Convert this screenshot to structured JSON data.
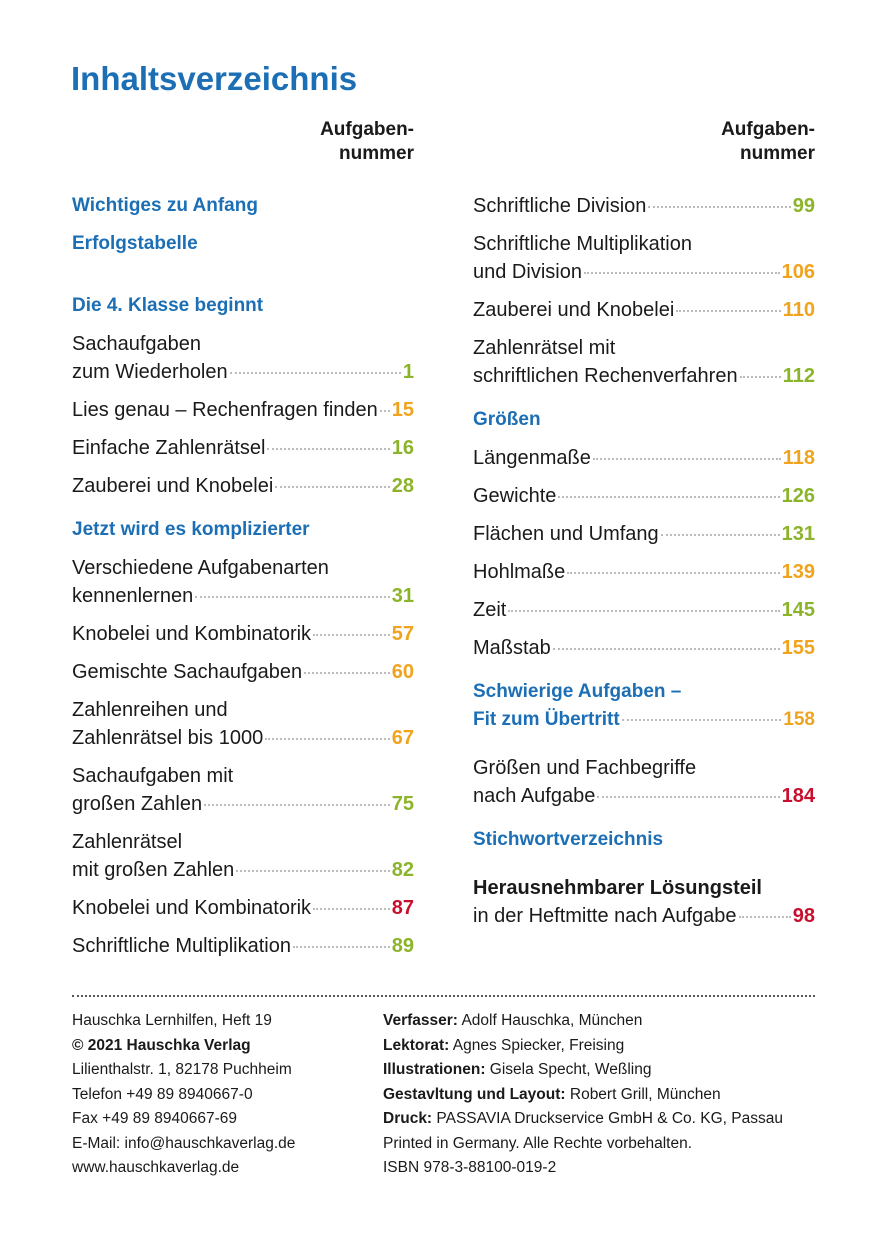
{
  "title": "Inhaltsverzeichnis",
  "columns": [
    {
      "header": [
        "Aufgaben-",
        "nummer"
      ],
      "items": [
        {
          "type": "heading",
          "lines": [
            "Wichtiges zu Anfang"
          ]
        },
        {
          "type": "heading",
          "lines": [
            "Erfolgstabelle"
          ]
        },
        {
          "type": "heading",
          "lines": [
            "Die 4. Klasse beginnt"
          ]
        },
        {
          "type": "entry",
          "lines": [
            "Sachaufgaben",
            "zum Wiederholen"
          ],
          "number": 1,
          "color": "#8cb42a"
        },
        {
          "type": "entry",
          "lines": [
            "Lies genau – Rechenfragen finden"
          ],
          "number": 15,
          "color": "#f0a41e"
        },
        {
          "type": "entry",
          "lines": [
            "Einfache Zahlenrätsel"
          ],
          "number": 16,
          "color": "#8cb42a"
        },
        {
          "type": "entry",
          "lines": [
            "Zauberei und Knobelei"
          ],
          "number": 28,
          "color": "#8cb42a"
        },
        {
          "type": "heading",
          "lines": [
            "Jetzt wird es komplizierter"
          ]
        },
        {
          "type": "entry",
          "lines": [
            "Verschiedene Aufgabenarten",
            "kennenlernen"
          ],
          "number": 31,
          "color": "#8cb42a"
        },
        {
          "type": "entry",
          "lines": [
            "Knobelei und Kombinatorik"
          ],
          "number": 57,
          "color": "#f0a41e"
        },
        {
          "type": "entry",
          "lines": [
            "Gemischte Sachaufgaben"
          ],
          "number": 60,
          "color": "#f0a41e"
        },
        {
          "type": "entry",
          "lines": [
            "Zahlenreihen und",
            "Zahlenrätsel bis 1000"
          ],
          "number": 67,
          "color": "#f0a41e"
        },
        {
          "type": "entry",
          "lines": [
            "Sachaufgaben mit",
            "großen Zahlen"
          ],
          "number": 75,
          "color": "#8cb42a"
        },
        {
          "type": "entry",
          "lines": [
            "Zahlenrätsel",
            "mit großen Zahlen"
          ],
          "number": 82,
          "color": "#8cb42a"
        },
        {
          "type": "entry",
          "lines": [
            "Knobelei und Kombinatorik"
          ],
          "number": 87,
          "color": "#c8102e"
        },
        {
          "type": "entry",
          "lines": [
            "Schriftliche Multiplikation"
          ],
          "number": 89,
          "color": "#8cb42a"
        }
      ]
    },
    {
      "header": [
        "Aufgaben-",
        "nummer"
      ],
      "items": [
        {
          "type": "entry",
          "lines": [
            "Schriftliche Division"
          ],
          "number": 99,
          "color": "#8cb42a"
        },
        {
          "type": "entry",
          "lines": [
            "Schriftliche Multiplikation",
            "und Division"
          ],
          "number": 106,
          "color": "#f0a41e"
        },
        {
          "type": "entry",
          "lines": [
            "Zauberei und Knobelei"
          ],
          "number": 110,
          "color": "#f0a41e"
        },
        {
          "type": "entry",
          "lines": [
            "Zahlenrätsel mit",
            "schriftlichen Rechenverfahren"
          ],
          "number": 112,
          "color": "#8cb42a"
        },
        {
          "type": "heading",
          "lines": [
            "Größen"
          ]
        },
        {
          "type": "entry",
          "lines": [
            "Längenmaße"
          ],
          "number": 118,
          "color": "#f0a41e"
        },
        {
          "type": "entry",
          "lines": [
            "Gewichte"
          ],
          "number": 126,
          "color": "#8cb42a"
        },
        {
          "type": "entry",
          "lines": [
            "Flächen und Umfang"
          ],
          "number": 131,
          "color": "#8cb42a"
        },
        {
          "type": "entry",
          "lines": [
            "Hohlmaße"
          ],
          "number": 139,
          "color": "#f0a41e"
        },
        {
          "type": "entry",
          "lines": [
            "Zeit"
          ],
          "number": 145,
          "color": "#8cb42a"
        },
        {
          "type": "entry",
          "lines": [
            "Maßstab"
          ],
          "number": 155,
          "color": "#f0a41e"
        },
        {
          "type": "heading",
          "lines": [
            "Schwierige Aufgaben –",
            "Fit zum Übertritt"
          ],
          "number": 158,
          "color": "#f0a41e"
        },
        {
          "type": "entry",
          "lines": [
            "Größen und Fachbegriffe",
            "nach Aufgabe"
          ],
          "number": 184,
          "color": "#c8102e"
        },
        {
          "type": "heading",
          "lines": [
            "Stichwortverzeichnis"
          ]
        },
        {
          "type": "entry",
          "lines": [
            "Herausnehmbarer Lösungsteil",
            "in der Heftmitte nach Aufgabe"
          ],
          "number": 98,
          "color": "#c8102e",
          "bold_first_line": true
        }
      ]
    }
  ],
  "footer": {
    "left": [
      {
        "text": "Hauschka Lernhilfen, Heft 19"
      },
      {
        "text": "© 2021 Hauschka Verlag",
        "bold": true
      },
      {
        "text": "Lilienthalstr. 1, 82178 Puchheim"
      },
      {
        "text": "Telefon +49 89 8940667-0"
      },
      {
        "text": "Fax +49 89 8940667-69"
      },
      {
        "text": "E-Mail: info@hauschkaverlag.de"
      },
      {
        "text": "www.hauschkaverlag.de"
      }
    ],
    "right": [
      {
        "label": "Verfasser:",
        "text": "Adolf Hauschka, München"
      },
      {
        "label": "Lektorat:",
        "text": "Agnes Spiecker, Freising"
      },
      {
        "label": "Illustrationen:",
        "text": "Gisela Specht, Weßling"
      },
      {
        "label": "Gestavltung und Layout:",
        "text": "Robert Grill, München"
      },
      {
        "label": "Druck:",
        "text": "PASSAVIA Druckservice GmbH & Co. KG, Passau"
      },
      {
        "text": "Printed in Germany. Alle Rechte vorbehalten."
      },
      {
        "text": "ISBN 978-3-88100-019-2"
      }
    ]
  }
}
